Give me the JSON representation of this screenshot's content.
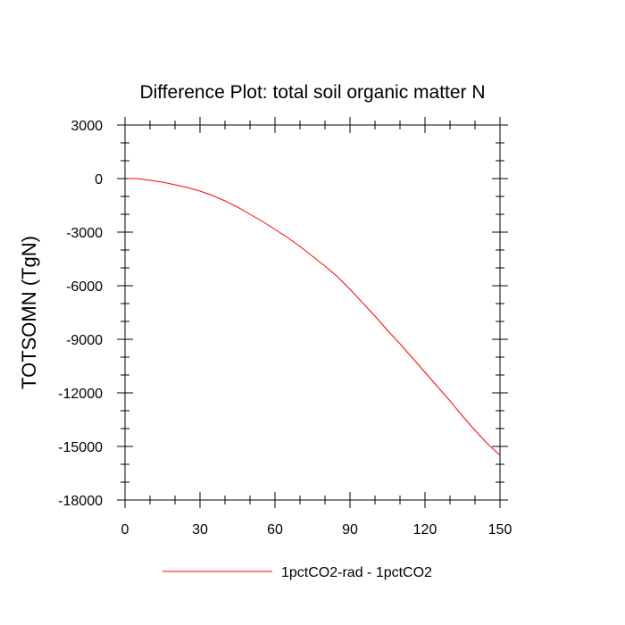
{
  "chart_data": {
    "type": "line",
    "title": "Difference Plot: total soil organic matter N",
    "xlabel": "",
    "ylabel": "TOTSOMN  (TgN)",
    "xlim": [
      0,
      150
    ],
    "ylim": [
      -18000,
      3000
    ],
    "x_ticks": [
      0,
      30,
      60,
      90,
      120,
      150
    ],
    "x_tick_labels": [
      "0",
      "30",
      "60",
      "90",
      "120",
      "150"
    ],
    "y_ticks": [
      3000,
      0,
      -3000,
      -6000,
      -9000,
      -12000,
      -15000,
      -18000
    ],
    "y_tick_labels": [
      "3000",
      "0",
      "-3000",
      "-6000",
      "-9000",
      "-12000",
      "-15000",
      "-18000"
    ],
    "grid": false,
    "legend_position": "bottom-center",
    "series": [
      {
        "name": "1pctCO2-rad - 1pctCO2",
        "color": "#ff0000",
        "x": [
          1,
          5,
          10,
          15,
          20,
          25,
          30,
          35,
          40,
          45,
          50,
          55,
          60,
          65,
          70,
          75,
          80,
          85,
          90,
          95,
          100,
          105,
          110,
          115,
          120,
          125,
          130,
          135,
          140,
          145,
          150
        ],
        "y": [
          0,
          0,
          -100,
          -200,
          -350,
          -500,
          -700,
          -950,
          -1250,
          -1600,
          -2000,
          -2400,
          -2850,
          -3300,
          -3800,
          -4350,
          -4900,
          -5500,
          -6200,
          -6950,
          -7700,
          -8500,
          -9250,
          -10050,
          -10850,
          -11650,
          -12450,
          -13300,
          -14100,
          -14850,
          -15500
        ]
      }
    ]
  },
  "colors": {
    "axis": "#000000",
    "background": "#ffffff",
    "series": "#ff0000"
  }
}
